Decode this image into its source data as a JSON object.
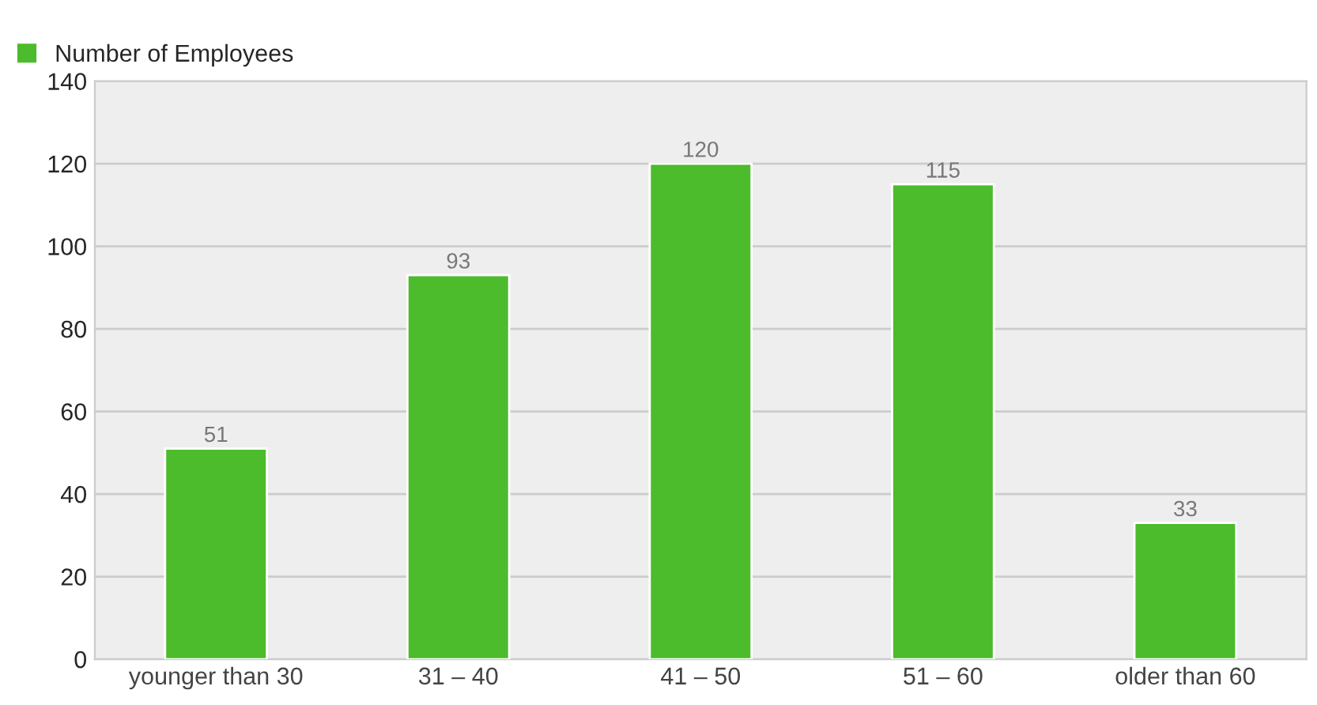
{
  "chart_data": {
    "type": "bar",
    "categories": [
      "younger than 30",
      "31 – 40",
      "41 – 50",
      "51 – 60",
      "older than 60"
    ],
    "series": [
      {
        "name": "Number of Employees",
        "color": "#4cbb2c",
        "values": [
          51,
          93,
          120,
          115,
          33
        ]
      }
    ],
    "ylim": [
      0,
      140
    ],
    "yticks": [
      0,
      20,
      40,
      60,
      80,
      100,
      120,
      140
    ],
    "grid": "y",
    "legend": "top left",
    "data_labels": true
  }
}
